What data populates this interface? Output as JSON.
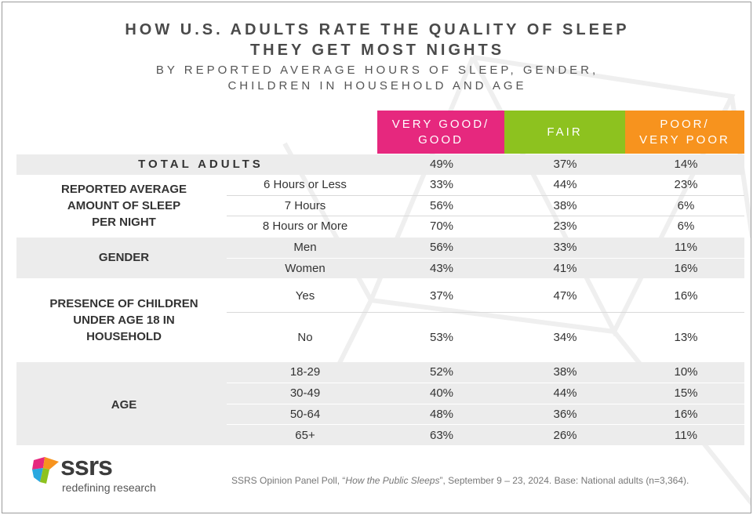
{
  "title_line1": "HOW U.S. ADULTS RATE THE QUALITY OF SLEEP",
  "title_line2": "THEY GET MOST NIGHTS",
  "subtitle_line1": "BY REPORTED AVERAGE HOURS OF SLEEP, GENDER,",
  "subtitle_line2": "CHILDREN IN HOUSEHOLD AND AGE",
  "colors": {
    "very_good": "#e6287e",
    "fair": "#8dc21f",
    "poor": "#f7931e",
    "band": "#ececec"
  },
  "chart_data": {
    "type": "table",
    "columns": [
      {
        "line1": "VERY GOOD/",
        "line2": "GOOD"
      },
      {
        "line1": "FAIR",
        "line2": ""
      },
      {
        "line1": "POOR/",
        "line2": "VERY POOR"
      }
    ],
    "total": {
      "label": "TOTAL ADULTS",
      "values": [
        "49%",
        "37%",
        "14%"
      ]
    },
    "groups": [
      {
        "lines": [
          "REPORTED AVERAGE",
          "AMOUNT OF SLEEP",
          "PER NIGHT"
        ],
        "rows": [
          {
            "label": "6 Hours or Less",
            "values": [
              "33%",
              "44%",
              "23%"
            ]
          },
          {
            "label": "7 Hours",
            "values": [
              "56%",
              "38%",
              "6%"
            ]
          },
          {
            "label": "8 Hours or More",
            "values": [
              "70%",
              "23%",
              "6%"
            ]
          }
        ]
      },
      {
        "lines": [
          "GENDER"
        ],
        "rows": [
          {
            "label": "Men",
            "values": [
              "56%",
              "33%",
              "11%"
            ]
          },
          {
            "label": "Women",
            "values": [
              "43%",
              "41%",
              "16%"
            ]
          }
        ]
      },
      {
        "lines": [
          "PRESENCE OF CHILDREN",
          "UNDER AGE 18 IN",
          "HOUSEHOLD"
        ],
        "rows": [
          {
            "label": "Yes",
            "values": [
              "37%",
              "47%",
              "16%"
            ]
          },
          {
            "label": "No",
            "values": [
              "53%",
              "34%",
              "13%"
            ]
          }
        ]
      },
      {
        "lines": [
          "AGE"
        ],
        "rows": [
          {
            "label": "18-29",
            "values": [
              "52%",
              "38%",
              "10%"
            ]
          },
          {
            "label": "30-49",
            "values": [
              "40%",
              "44%",
              "15%"
            ]
          },
          {
            "label": "50-64",
            "values": [
              "48%",
              "36%",
              "16%"
            ]
          },
          {
            "label": "65+",
            "values": [
              "63%",
              "26%",
              "11%"
            ]
          }
        ]
      }
    ]
  },
  "logo": {
    "name": "ssrs",
    "tagline": "redefining research"
  },
  "source": {
    "prefix": "SSRS Opinion Panel Poll, “",
    "poll_title": "How the Public Sleeps",
    "suffix": "”, September 9 – 23, 2024. Base: National adults (n=3,364)."
  }
}
